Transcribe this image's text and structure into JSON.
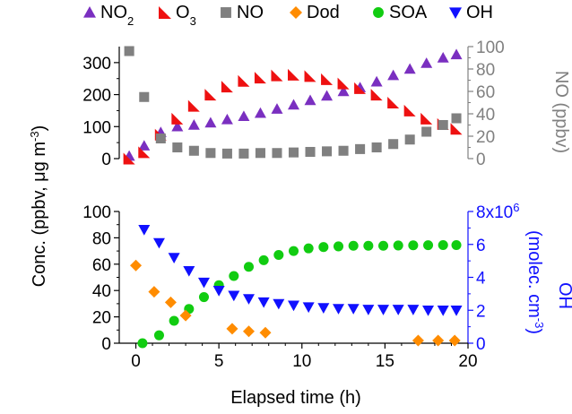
{
  "chart_data": {
    "type": "scatter",
    "legend": {
      "placement": "top",
      "entries": [
        {
          "key": "NO2",
          "label": "NO",
          "sub": "2",
          "color": "#7a2fc0",
          "marker": "triangle-up"
        },
        {
          "key": "O3",
          "label": "O",
          "sub": "3",
          "color": "#ee1111",
          "marker": "triangle-right"
        },
        {
          "key": "NO",
          "label": "NO",
          "sub": "",
          "color": "#808080",
          "marker": "square"
        },
        {
          "key": "Dod",
          "label": "Dod",
          "sub": "",
          "color": "#ff8c00",
          "marker": "diamond"
        },
        {
          "key": "SOA",
          "label": "SOA",
          "sub": "",
          "color": "#11cc11",
          "marker": "circle"
        },
        {
          "key": "OH",
          "label": "OH",
          "sub": "",
          "color": "#1010ff",
          "marker": "triangle-down"
        }
      ]
    },
    "xaxis": {
      "label": "Elapsed time (h)",
      "range": [
        -1,
        20
      ],
      "ticks": [
        "0",
        "5",
        "10",
        "15",
        "20"
      ],
      "tick_values": [
        0,
        5,
        10,
        15,
        20
      ]
    },
    "shared_ylabel": {
      "pre": "Conc. (ppbv, μg m",
      "sup": "-3",
      "post": ")"
    },
    "panels": [
      {
        "id": "top",
        "left_axis": {
          "range": [
            0,
            350
          ],
          "ticks": [
            "0",
            "100",
            "200",
            "300"
          ],
          "tick_values": [
            0,
            100,
            200,
            300
          ]
        },
        "right_axis": {
          "label": "NO (ppbv)",
          "range": [
            0,
            100
          ],
          "ticks": [
            "0",
            "20",
            "40",
            "60",
            "80",
            "100"
          ],
          "tick_values": [
            0,
            20,
            40,
            60,
            80,
            100
          ],
          "color": "#808080"
        },
        "series": [
          {
            "key": "NO2",
            "axis": "left",
            "x": [
              -0.4,
              0.5,
              1.5,
              2.5,
              3.5,
              4.5,
              5.5,
              6.5,
              7.5,
              8.5,
              9.5,
              10.5,
              11.5,
              12.5,
              13.5,
              14.5,
              15.5,
              16.5,
              17.5,
              18.5,
              19.3
            ],
            "y": [
              8,
              40,
              82,
              100,
              105,
              112,
              122,
              132,
              142,
              155,
              168,
              182,
              196,
              210,
              222,
              240,
              260,
              280,
              298,
              315,
              325
            ]
          },
          {
            "key": "O3",
            "axis": "left",
            "x": [
              -0.4,
              0.5,
              1.5,
              2.5,
              3.5,
              4.5,
              5.5,
              6.5,
              7.5,
              8.5,
              9.5,
              10.5,
              11.5,
              12.5,
              13.5,
              14.5,
              15.5,
              16.5,
              17.5,
              18.5,
              19.3
            ],
            "y": [
              0,
              20,
              75,
              125,
              165,
              200,
              225,
              243,
              253,
              260,
              262,
              258,
              248,
              235,
              220,
              200,
              175,
              150,
              125,
              108,
              93
            ]
          },
          {
            "key": "NO",
            "axis": "right",
            "x": [
              -0.4,
              0.5,
              1.5,
              2.5,
              3.5,
              4.5,
              5.5,
              6.5,
              7.5,
              8.5,
              9.5,
              10.5,
              11.5,
              12.5,
              13.5,
              14.5,
              15.5,
              16.5,
              17.5,
              18.5,
              19.3
            ],
            "y": [
              96,
              55,
              18,
              10,
              7,
              5,
              4.5,
              4.5,
              5,
              5,
              5.5,
              6,
              6.5,
              7,
              8.5,
              10,
              13,
              17,
              24,
              30,
              36
            ]
          }
        ]
      },
      {
        "id": "bottom",
        "left_axis": {
          "range": [
            0,
            100
          ],
          "ticks": [
            "0",
            "20",
            "40",
            "60",
            "80",
            "100"
          ],
          "tick_values": [
            0,
            20,
            40,
            60,
            80,
            100
          ]
        },
        "right_axis": {
          "label_pre": "OH",
          "label_main": "(molec. cm",
          "label_sup": "-3",
          "label_post": ")",
          "range": [
            0,
            8000000
          ],
          "ticks": [
            "0",
            "2",
            "4",
            "6",
            "8x10"
          ],
          "tick_sup": "6",
          "tick_values": [
            0,
            2000000,
            4000000,
            6000000,
            8000000
          ],
          "color": "#1010ff"
        },
        "series": [
          {
            "key": "SOA",
            "axis": "left",
            "x": [
              0.4,
              1.4,
              2.3,
              3.2,
              4.1,
              5.0,
              5.9,
              6.8,
              7.7,
              8.6,
              9.5,
              10.4,
              11.3,
              12.2,
              13.1,
              14.0,
              14.9,
              15.8,
              16.7,
              17.6,
              18.5,
              19.3
            ],
            "y": [
              0,
              6,
              17,
              26,
              35,
              44,
              51,
              58,
              63,
              67,
              70,
              72,
              73,
              73.5,
              74,
              74,
              74,
              74.2,
              74.3,
              74.4,
              74.5,
              74.5
            ]
          },
          {
            "key": "OH",
            "axis": "right",
            "x": [
              0.5,
              1.4,
              2.3,
              3.2,
              4.1,
              5.0,
              5.9,
              6.8,
              7.7,
              8.6,
              9.5,
              10.4,
              11.3,
              12.2,
              13.1,
              14.0,
              14.9,
              15.8,
              16.7,
              17.6,
              18.5,
              19.3
            ],
            "y": [
              6900000,
              6100000,
              5200000,
              4400000,
              3700000,
              3200000,
              2900000,
              2700000,
              2500000,
              2400000,
              2300000,
              2200000,
              2150000,
              2100000,
              2100000,
              2050000,
              2050000,
              2050000,
              2050000,
              2000000,
              2000000,
              2000000
            ]
          },
          {
            "key": "Dod",
            "axis": "left",
            "x": [
              0,
              1.1,
              2.1,
              3.0,
              5.8,
              6.8,
              7.8,
              17.0,
              18.2,
              19.2
            ],
            "y": [
              59,
              39,
              31,
              21,
              11,
              9,
              8,
              2,
              2,
              2
            ]
          }
        ]
      }
    ]
  }
}
